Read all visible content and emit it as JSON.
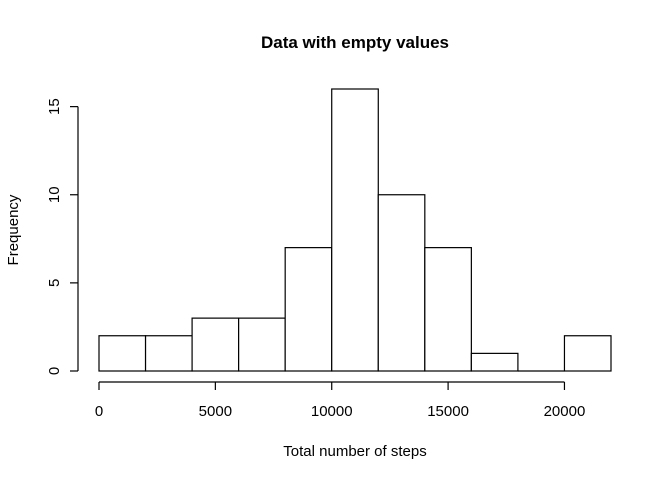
{
  "chart_data": {
    "type": "bar",
    "title": "Data with empty values",
    "xlabel": "Total number of steps",
    "ylabel": "Frequency",
    "bins": [
      {
        "start": 0,
        "end": 2000,
        "count": 2
      },
      {
        "start": 2000,
        "end": 4000,
        "count": 2
      },
      {
        "start": 4000,
        "end": 6000,
        "count": 3
      },
      {
        "start": 6000,
        "end": 8000,
        "count": 3
      },
      {
        "start": 8000,
        "end": 10000,
        "count": 7
      },
      {
        "start": 10000,
        "end": 12000,
        "count": 16
      },
      {
        "start": 12000,
        "end": 14000,
        "count": 10
      },
      {
        "start": 14000,
        "end": 16000,
        "count": 7
      },
      {
        "start": 16000,
        "end": 18000,
        "count": 1
      },
      {
        "start": 18000,
        "end": 20000,
        "count": 0
      },
      {
        "start": 20000,
        "end": 22000,
        "count": 2
      }
    ],
    "xticks": [
      0,
      5000,
      10000,
      15000,
      20000
    ],
    "yticks": [
      0,
      5,
      10,
      15
    ],
    "xlim": [
      0,
      22000
    ],
    "ylim": [
      0,
      16
    ],
    "grid": false,
    "colors": {
      "bar_fill": "#ffffff",
      "bar_stroke": "#000000"
    }
  }
}
